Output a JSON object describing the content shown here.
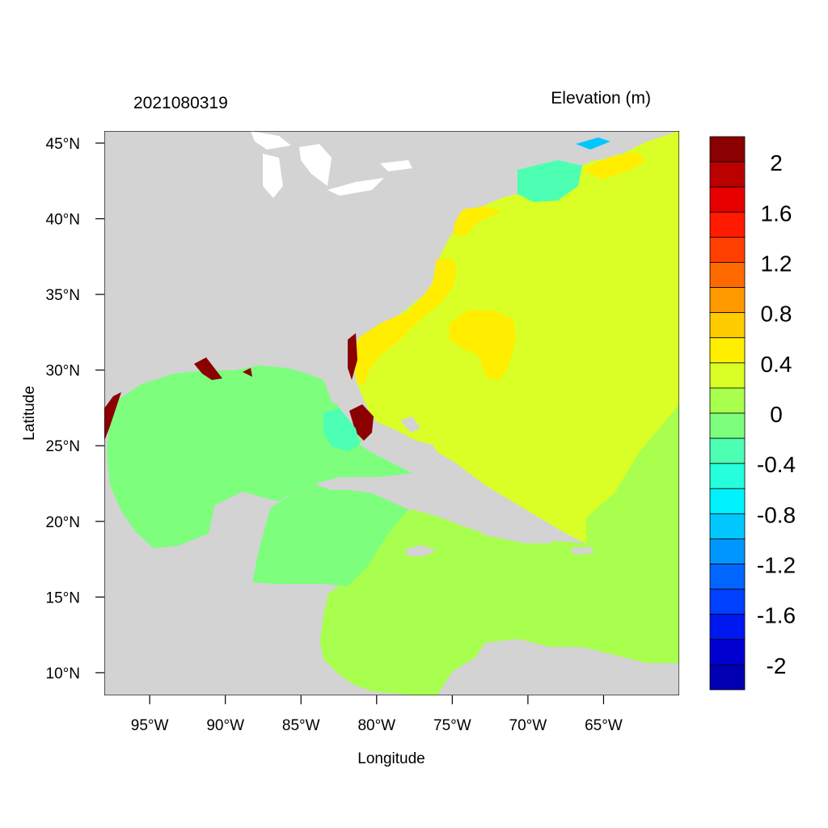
{
  "left_title": "2021080319",
  "right_title": "Elevation (m)",
  "xlabel": "Longitude",
  "ylabel": "Latitude",
  "x_ticks": [
    {
      "lon": -95,
      "label": "95°W"
    },
    {
      "lon": -90,
      "label": "90°W"
    },
    {
      "lon": -85,
      "label": "85°W"
    },
    {
      "lon": -80,
      "label": "80°W"
    },
    {
      "lon": -75,
      "label": "75°W"
    },
    {
      "lon": -70,
      "label": "70°W"
    },
    {
      "lon": -65,
      "label": "65°W"
    }
  ],
  "y_ticks": [
    {
      "lat": 45,
      "label": "45°N"
    },
    {
      "lat": 40,
      "label": "40°N"
    },
    {
      "lat": 35,
      "label": "35°N"
    },
    {
      "lat": 30,
      "label": "30°N"
    },
    {
      "lat": 25,
      "label": "25°N"
    },
    {
      "lat": 20,
      "label": "20°N"
    },
    {
      "lat": 15,
      "label": "15°N"
    },
    {
      "lat": 10,
      "label": "10°N"
    }
  ],
  "lon_range": [
    -98,
    -60
  ],
  "lat_range": [
    8.5,
    45.8
  ],
  "colorbar": {
    "colors": [
      "#8b0000",
      "#bb0000",
      "#e60000",
      "#ff1a00",
      "#ff4000",
      "#ff6a00",
      "#ff9900",
      "#ffcc00",
      "#ffee00",
      "#d9ff26",
      "#a8ff4d",
      "#7dff7d",
      "#4dffb3",
      "#26ffdb",
      "#00f2ff",
      "#00c8ff",
      "#0096ff",
      "#0066ff",
      "#0040ff",
      "#0018f0",
      "#0000d0",
      "#0000b0"
    ],
    "labels": [
      "2",
      "1.6",
      "1.2",
      "0.8",
      "0.4",
      "0",
      "-0.4",
      "-0.8",
      "-1.2",
      "-1.6",
      "-2"
    ]
  },
  "colors": {
    "land": "#d3d3d3",
    "lakes": "#ffffff",
    "atlantic": "#d9ff26",
    "gulf": "#7dff7d",
    "caribbean": "#a8ff4d",
    "high": "#ffee00",
    "surge": "#8b0000"
  }
}
